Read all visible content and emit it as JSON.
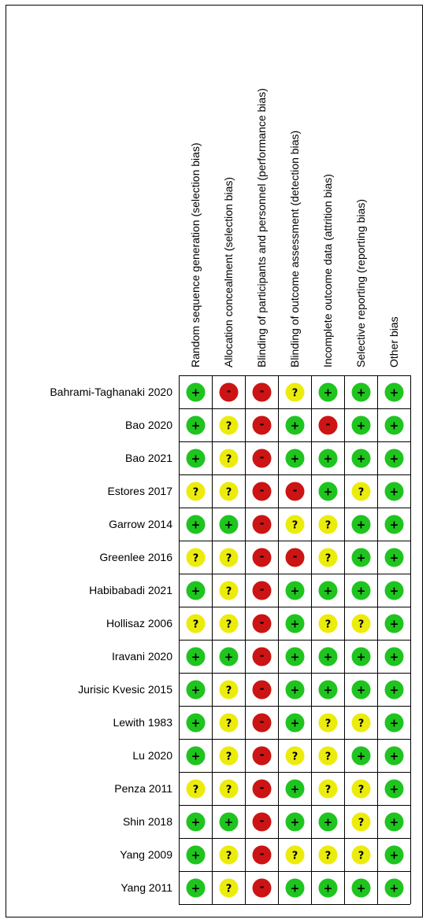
{
  "chart_data": {
    "type": "table",
    "domains": [
      "Random sequence generation (selection bias)",
      "Allocation concealment (selection bias)",
      "Blinding of participants and personnel (performance bias)",
      "Blinding of outcome assessment (detection bias)",
      "Incomplete outcome data (attrition bias)",
      "Selective reporting (reporting bias)",
      "Other bias"
    ],
    "studies": [
      {
        "name": "Bahrami-Taghanaki 2020",
        "ratings": [
          "low",
          "high",
          "high",
          "unclear",
          "low",
          "low",
          "low"
        ]
      },
      {
        "name": "Bao 2020",
        "ratings": [
          "low",
          "unclear",
          "high",
          "low",
          "high",
          "low",
          "low"
        ]
      },
      {
        "name": "Bao 2021",
        "ratings": [
          "low",
          "unclear",
          "high",
          "low",
          "low",
          "low",
          "low"
        ]
      },
      {
        "name": "Estores 2017",
        "ratings": [
          "unclear",
          "unclear",
          "high",
          "high",
          "low",
          "unclear",
          "low"
        ]
      },
      {
        "name": "Garrow 2014",
        "ratings": [
          "low",
          "low",
          "high",
          "unclear",
          "unclear",
          "low",
          "low"
        ]
      },
      {
        "name": "Greenlee 2016",
        "ratings": [
          "unclear",
          "unclear",
          "high",
          "high",
          "unclear",
          "low",
          "low"
        ]
      },
      {
        "name": "Habibabadi 2021",
        "ratings": [
          "low",
          "unclear",
          "high",
          "low",
          "low",
          "low",
          "low"
        ]
      },
      {
        "name": "Hollisaz 2006",
        "ratings": [
          "unclear",
          "unclear",
          "high",
          "low",
          "unclear",
          "unclear",
          "low"
        ]
      },
      {
        "name": "Iravani 2020",
        "ratings": [
          "low",
          "low",
          "high",
          "low",
          "low",
          "low",
          "low"
        ]
      },
      {
        "name": "Jurisic Kvesic 2015",
        "ratings": [
          "low",
          "unclear",
          "high",
          "low",
          "low",
          "low",
          "low"
        ]
      },
      {
        "name": "Lewith 1983",
        "ratings": [
          "low",
          "unclear",
          "high",
          "low",
          "unclear",
          "unclear",
          "low"
        ]
      },
      {
        "name": "Lu 2020",
        "ratings": [
          "low",
          "unclear",
          "high",
          "unclear",
          "unclear",
          "low",
          "low"
        ]
      },
      {
        "name": "Penza 2011",
        "ratings": [
          "unclear",
          "unclear",
          "high",
          "low",
          "unclear",
          "unclear",
          "low"
        ]
      },
      {
        "name": "Shin 2018",
        "ratings": [
          "low",
          "low",
          "high",
          "low",
          "low",
          "unclear",
          "low"
        ]
      },
      {
        "name": "Yang 2009",
        "ratings": [
          "low",
          "unclear",
          "high",
          "unclear",
          "unclear",
          "unclear",
          "low"
        ]
      },
      {
        "name": "Yang 2011",
        "ratings": [
          "low",
          "unclear",
          "high",
          "low",
          "low",
          "low",
          "low"
        ]
      }
    ],
    "rating_styles": {
      "low": {
        "symbol": "+",
        "color": "#1fc41f"
      },
      "unclear": {
        "symbol": "?",
        "color": "#ecec0c"
      },
      "high": {
        "symbol": "-",
        "color": "#cc1414"
      }
    }
  }
}
